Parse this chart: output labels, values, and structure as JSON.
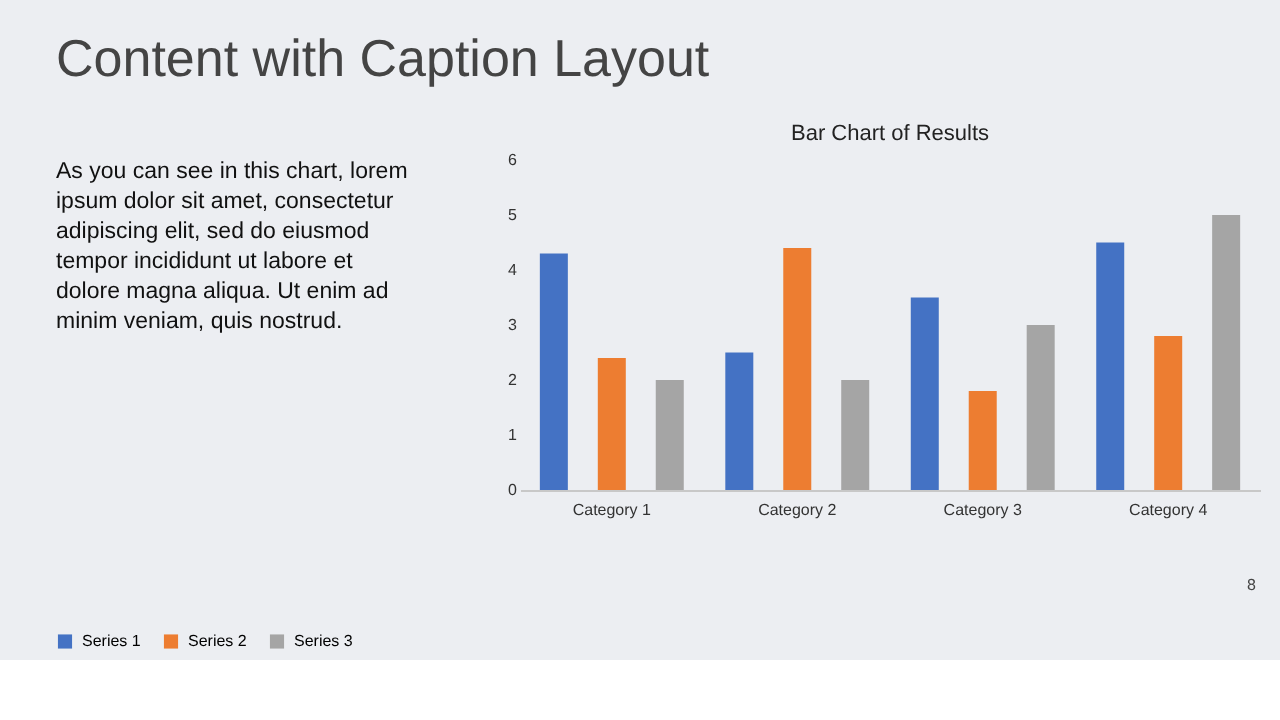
{
  "chart_data": {
    "type": "bar",
    "title": "Bar Chart of Results",
    "categories": [
      "Category 1",
      "Category 2",
      "Category 3",
      "Category 4"
    ],
    "series": [
      {
        "name": "Series 1",
        "color": "#4472c4",
        "values": [
          4.3,
          2.5,
          3.5,
          4.5
        ]
      },
      {
        "name": "Series 2",
        "color": "#ed7d31",
        "values": [
          2.4,
          4.4,
          1.8,
          2.8
        ]
      },
      {
        "name": "Series 3",
        "color": "#a5a5a5",
        "values": [
          2,
          2,
          3,
          5
        ]
      }
    ],
    "ylim": [
      0,
      6
    ],
    "yticks": [
      0,
      1,
      2,
      3,
      4,
      5,
      6
    ],
    "grid": false,
    "legend": "bottom",
    "annotations": [
      "Content with Caption Layout",
      "As you can see in this chart, lorem ipsum dolor sit amet, consectetur adipiscing elit, sed do eiusmod tempor incididunt ut labore et dolore magna aliqua. Ut enim ad minim veniam, quis nostrud.",
      "8"
    ]
  }
}
